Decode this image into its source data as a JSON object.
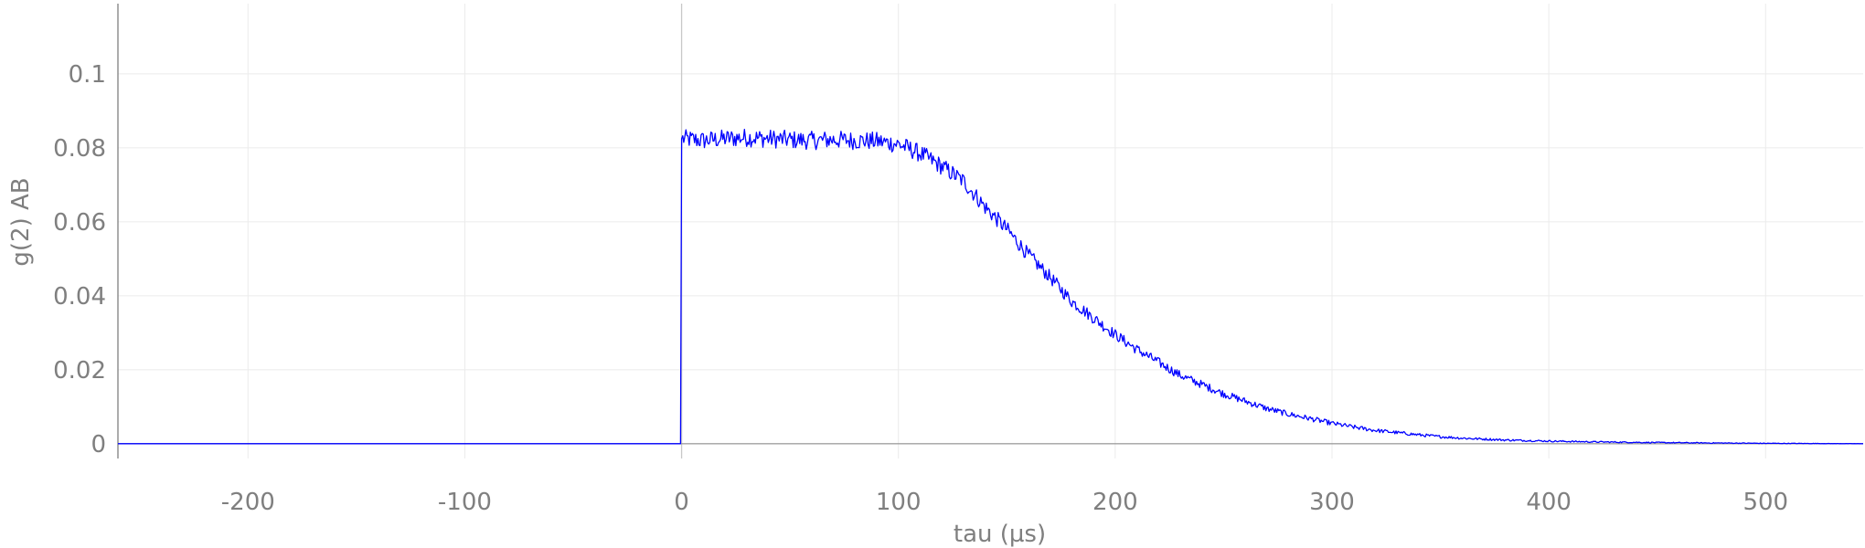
{
  "chart_data": {
    "type": "line",
    "title": "",
    "xlabel": "tau (µs)",
    "ylabel": "g(2) AB",
    "xlim": [
      -260,
      545
    ],
    "ylim": [
      -0.004,
      0.119
    ],
    "x_ticks": [
      -200,
      -100,
      0,
      100,
      200,
      300,
      400,
      500
    ],
    "x_tick_labels": [
      "-200",
      "-100",
      "0",
      "100",
      "200",
      "300",
      "400",
      "500"
    ],
    "y_ticks": [
      0,
      0.02,
      0.04,
      0.06,
      0.08,
      0.1
    ],
    "y_tick_labels": [
      "0",
      "0.02",
      "0.04",
      "0.06",
      "0.08",
      "0.1"
    ],
    "grid": true,
    "legend": "none",
    "colors": {
      "series": "#0000ff",
      "grid": "#ebebeb",
      "axis": "#7f7f7f",
      "text": "#7f7f7f"
    },
    "series": [
      {
        "x": [
          -260,
          -1,
          0,
          10,
          20,
          30,
          40,
          50,
          60,
          70,
          80,
          90,
          100,
          110,
          120,
          130,
          140,
          150,
          160,
          170,
          180,
          190,
          200,
          210,
          220,
          230,
          240,
          250,
          260,
          270,
          280,
          290,
          300,
          310,
          320,
          330,
          340,
          350,
          360,
          380,
          400,
          420,
          450,
          500,
          545
        ],
        "values": [
          0,
          0,
          0.0825,
          0.082,
          0.0825,
          0.0828,
          0.0825,
          0.0822,
          0.082,
          0.0822,
          0.082,
          0.0818,
          0.081,
          0.0785,
          0.075,
          0.071,
          0.064,
          0.058,
          0.051,
          0.045,
          0.0385,
          0.034,
          0.0295,
          0.0255,
          0.022,
          0.0185,
          0.016,
          0.0135,
          0.0115,
          0.0095,
          0.008,
          0.0068,
          0.0055,
          0.0045,
          0.0036,
          0.003,
          0.0024,
          0.0019,
          0.0015,
          0.001,
          0.0007,
          0.0005,
          0.0003,
          0.0001,
          0.0
        ],
        "noise_amplitude": 0.0025
      }
    ]
  }
}
